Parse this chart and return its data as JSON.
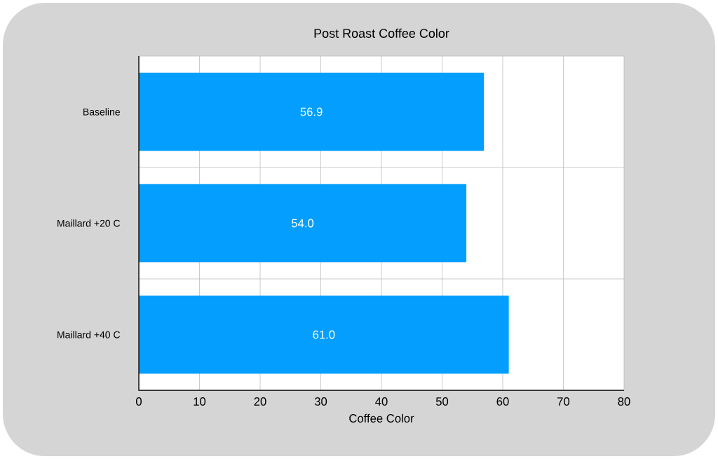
{
  "chart_data": {
    "type": "bar",
    "orientation": "horizontal",
    "title": "Post Roast Coffee Color",
    "xlabel": "Coffee Color",
    "categories": [
      "Baseline",
      "Maillard +20 C",
      "Maillard +40 C"
    ],
    "values": [
      56.9,
      54.0,
      61.0
    ],
    "value_labels": [
      "56.9",
      "54.0",
      "61.0"
    ],
    "color": "#049ffe",
    "xlim": [
      0,
      80
    ],
    "xticks": [
      0,
      10,
      20,
      30,
      40,
      50,
      60,
      70,
      80
    ],
    "grid": true
  }
}
